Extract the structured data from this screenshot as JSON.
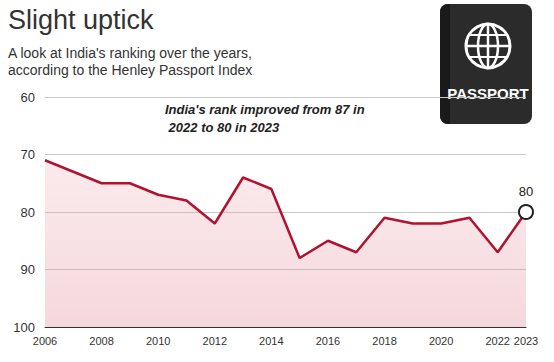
{
  "chart_data": {
    "type": "line",
    "title": "Slight uptick",
    "subtitle": "A look at India's ranking over the years, according to the Henley Passport Index",
    "annotation": "India's rank improved from 87 in 2022 to 80 in 2023",
    "icon_text": "PASSPORT",
    "categories": [
      "2006",
      null,
      "2008",
      null,
      "2010",
      null,
      "2012",
      null,
      "2014",
      null,
      "2016",
      null,
      "2018",
      null,
      "2020",
      null,
      "2022",
      "2023"
    ],
    "values": [
      71,
      73,
      75,
      75,
      77,
      78,
      82,
      74,
      76,
      88,
      85,
      87,
      81,
      82,
      82,
      81,
      87,
      80
    ],
    "color": "#b3122e",
    "ylim": [
      60,
      100
    ],
    "yticks": [
      60,
      70,
      80,
      90,
      100
    ],
    "grid": true
  }
}
